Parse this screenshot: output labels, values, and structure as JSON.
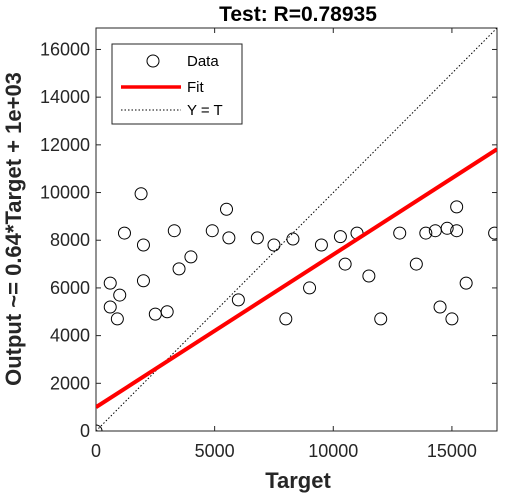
{
  "chart_data": {
    "type": "scatter",
    "title": "Test: R=0.78935",
    "xlabel": "Target",
    "ylabel": "Output ~= 0.64*Target + 1e+03",
    "xlim": [
      0,
      16900
    ],
    "ylim": [
      0,
      16900
    ],
    "xticks": [
      0,
      5000,
      10000,
      15000
    ],
    "xtick_labels": [
      "0",
      "5000",
      "10000",
      "15000"
    ],
    "yticks": [
      0,
      2000,
      4000,
      6000,
      8000,
      10000,
      12000,
      14000,
      16000
    ],
    "ytick_labels": [
      "0",
      "2000",
      "4000",
      "6000",
      "8000",
      "10000",
      "12000",
      "14000",
      "16000"
    ],
    "grid": false,
    "legend_position": "top-left",
    "legend": [
      "Data",
      "Fit",
      "Y = T"
    ],
    "fit": {
      "slope": 0.64,
      "intercept": 1000,
      "color": "#ff0000"
    },
    "identity_line": {
      "style": "dotted",
      "color": "#000000"
    },
    "series": [
      {
        "name": "Data",
        "marker": "open-circle",
        "color": "#000000",
        "x": [
          0,
          1900,
          2000,
          5500,
          7500,
          9500,
          15200,
          16800,
          15600,
          10300,
          11000,
          12800,
          13900,
          14300,
          14800,
          15200,
          6800,
          5600,
          8300,
          1200,
          3300,
          4900,
          600,
          900,
          600,
          1000,
          2000,
          3500,
          4000,
          8000,
          12000,
          15000,
          14500,
          13500,
          9000,
          6000,
          3000,
          2500,
          11500,
          10500
        ],
        "y": [
          0,
          9950,
          7800,
          9300,
          7800,
          7800,
          9400,
          8300,
          6200,
          8150,
          8300,
          8300,
          8300,
          8400,
          8500,
          8400,
          8100,
          8100,
          8050,
          8300,
          8400,
          8400,
          6200,
          4700,
          5200,
          5700,
          6300,
          6800,
          7300,
          4700,
          4700,
          4700,
          5200,
          7000,
          6000,
          5500,
          5000,
          4900,
          6500,
          7000
        ]
      }
    ]
  }
}
